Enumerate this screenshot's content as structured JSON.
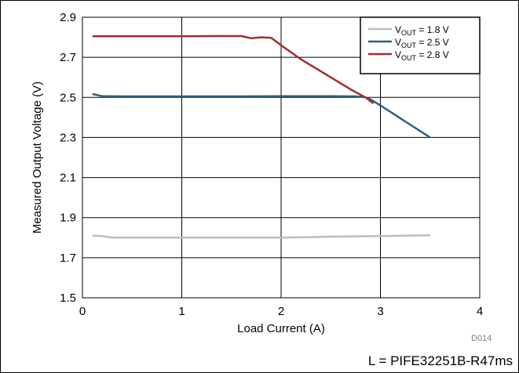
{
  "chart_data": {
    "type": "line",
    "xlabel": "Load Current (A)",
    "ylabel": "Measured Output Voltage (V)",
    "xlim": [
      0,
      4
    ],
    "ylim": [
      1.5,
      2.9
    ],
    "x_ticks": [
      "0",
      "1",
      "2",
      "3",
      "4"
    ],
    "y_ticks": [
      "1.5",
      "1.7",
      "1.9",
      "2.1",
      "2.3",
      "2.5",
      "2.7",
      "2.9"
    ],
    "grid": true,
    "legend_placement": "top-right",
    "series": [
      {
        "name_main": "V",
        "name_sub": "OUT",
        "name_tail": " = 1.8 V",
        "color": "#BDBDBD",
        "points": [
          [
            0.1,
            1.81
          ],
          [
            0.2,
            1.808
          ],
          [
            0.3,
            1.8
          ],
          [
            0.5,
            1.8
          ],
          [
            1.0,
            1.8
          ],
          [
            1.5,
            1.8
          ],
          [
            2.0,
            1.8
          ],
          [
            2.5,
            1.805
          ],
          [
            3.0,
            1.808
          ],
          [
            3.5,
            1.812
          ]
        ]
      },
      {
        "name_main": "V",
        "name_sub": "OUT",
        "name_tail": " = 2.5 V",
        "color": "#2C5F78",
        "points": [
          [
            0.1,
            2.517
          ],
          [
            0.2,
            2.506
          ],
          [
            0.5,
            2.505
          ],
          [
            1.0,
            2.505
          ],
          [
            1.5,
            2.505
          ],
          [
            2.0,
            2.506
          ],
          [
            2.5,
            2.506
          ],
          [
            2.75,
            2.505
          ],
          [
            2.85,
            2.5
          ],
          [
            2.9,
            2.49
          ],
          [
            3.0,
            2.46
          ],
          [
            3.25,
            2.38
          ],
          [
            3.5,
            2.3
          ]
        ]
      },
      {
        "name_main": "V",
        "name_sub": "OUT",
        "name_tail": " = 2.8 V",
        "color": "#A32B31",
        "points": [
          [
            0.1,
            2.805
          ],
          [
            0.5,
            2.805
          ],
          [
            1.0,
            2.805
          ],
          [
            1.4,
            2.806
          ],
          [
            1.6,
            2.806
          ],
          [
            1.7,
            2.795
          ],
          [
            1.8,
            2.8
          ],
          [
            1.9,
            2.797
          ],
          [
            2.0,
            2.76
          ],
          [
            2.2,
            2.69
          ],
          [
            2.5,
            2.6
          ],
          [
            2.7,
            2.54
          ],
          [
            2.85,
            2.5
          ],
          [
            2.93,
            2.47
          ]
        ]
      }
    ]
  },
  "figure_id": "D014",
  "footnote": "L = PIFE32251B-R47ms"
}
